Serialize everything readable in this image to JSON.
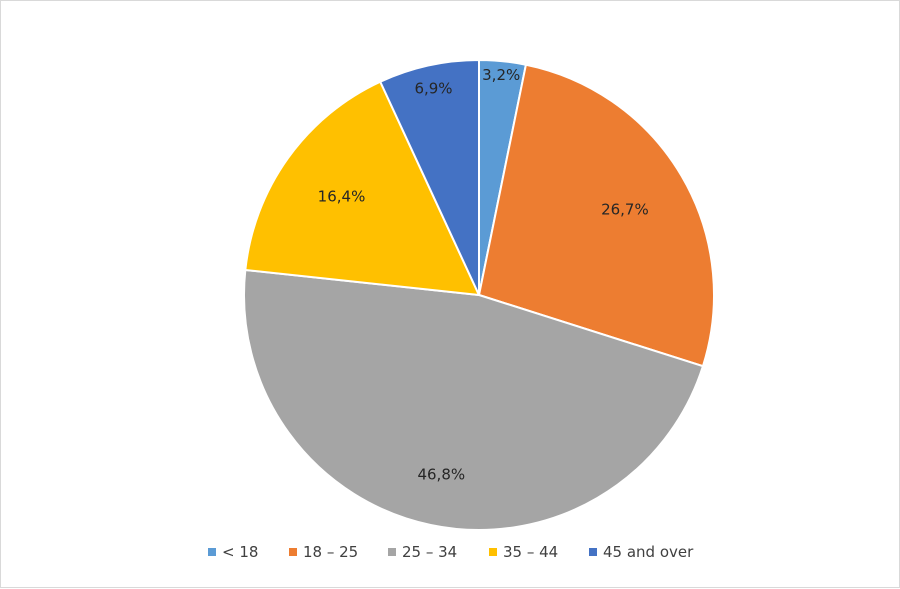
{
  "chart_data": {
    "type": "pie",
    "categories": [
      "< 18",
      "18 – 25",
      "25 – 34",
      "35 – 44",
      "45 and over"
    ],
    "values": [
      3.2,
      26.7,
      46.8,
      16.4,
      6.9
    ],
    "labels": [
      "3,2%",
      "26,7%",
      "46,8%",
      "16,4%",
      "6,9%"
    ],
    "colors": [
      "#5b9bd5",
      "#ed7d31",
      "#a5a5a5",
      "#ffc000",
      "#4472c4"
    ],
    "start_angle_deg": 0,
    "direction": "clockwise",
    "legend_position": "bottom"
  }
}
